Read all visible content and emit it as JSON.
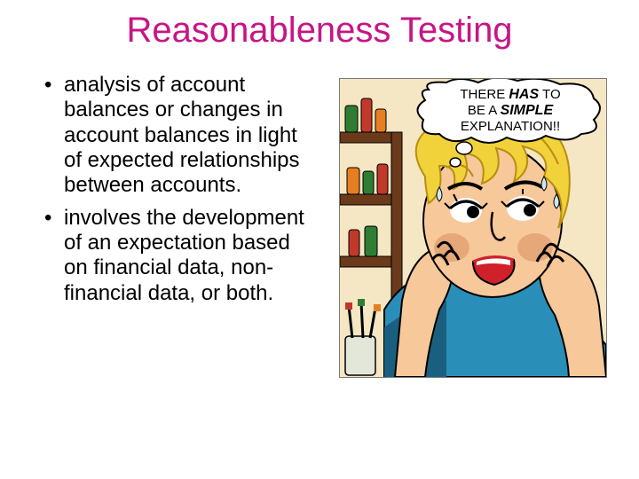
{
  "title": {
    "text": "Reasonableness Testing",
    "color": "#c71585",
    "fontsize": 40
  },
  "bullets": {
    "items": [
      "analysis of account balances or changes in account balances in light of expected relationships between accounts.",
      "involves the development of an expectation based on financial data, non-financial data, or both."
    ],
    "color": "#000000",
    "fontsize": 24
  },
  "illustration": {
    "thought_line1": "THERE HAS TO",
    "thought_line2": "BE A SIMPLE",
    "thought_line3": "EXPLANATION!!",
    "palette": {
      "skin": "#f7c89a",
      "skin_shade": "#e6a878",
      "hair": "#f2d23a",
      "hair_line": "#b88e10",
      "lips": "#d0202a",
      "dress": "#2a8fb8",
      "dress_dark": "#1a5f80",
      "shelf": "#6b3a1a",
      "wall": "#f5e6c4",
      "bottle1": "#2e7d32",
      "bottle2": "#c0392b",
      "bottle3": "#e67e22",
      "bubble_fill": "#ffffff",
      "bubble_stroke": "#000000",
      "outline": "#000000",
      "glass": "#cfe8f0"
    }
  }
}
